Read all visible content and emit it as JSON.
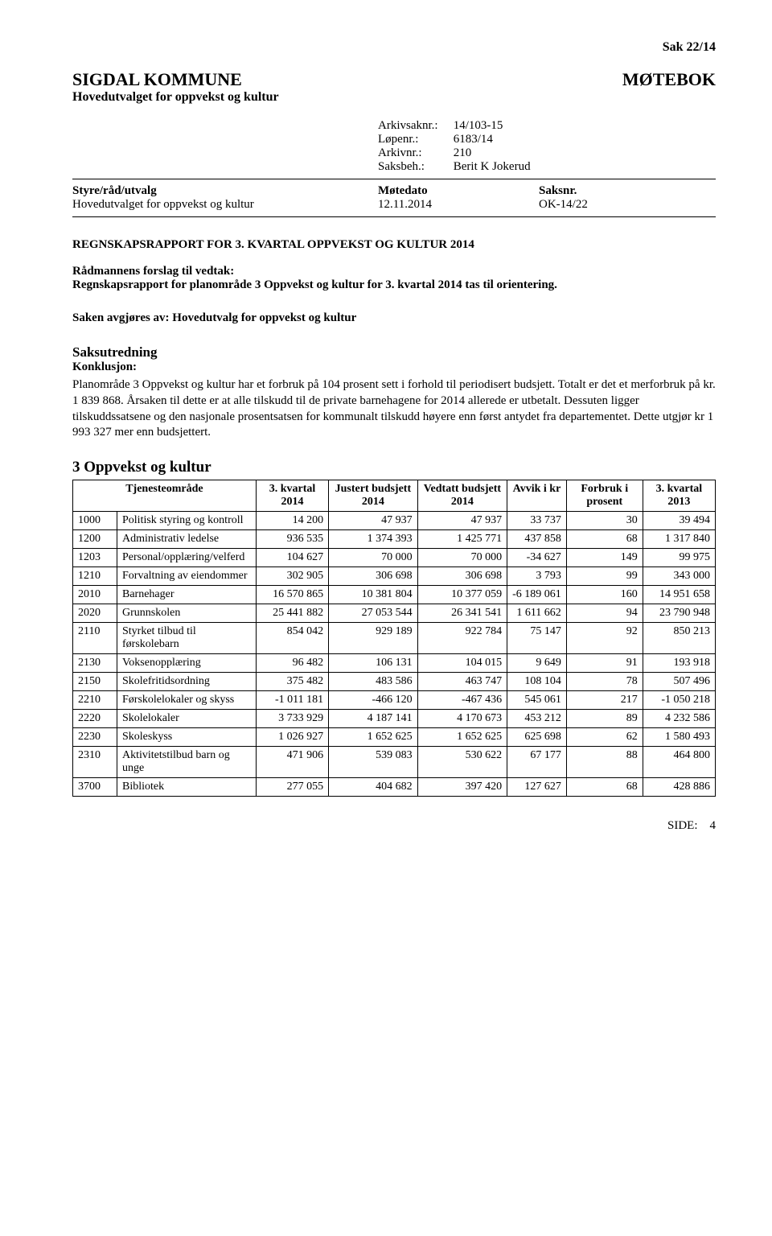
{
  "case_ref_top": "Sak  22/14",
  "org": "SIGDAL KOMMUNE",
  "subheader": "Hovedutvalget for oppvekst og kultur",
  "doc_type": "MØTEBOK",
  "meta": {
    "arkivsaknr_label": "Arkivsaknr.:",
    "arkivsaknr": "14/103-15",
    "lopenr_label": "Løpenr.:",
    "lopenr": "6183/14",
    "arkivnr_label": "Arkivnr.:",
    "arkivnr": "210",
    "saksbeh_label": "Saksbeh.:",
    "saksbeh": "Berit K  Jokerud"
  },
  "columns_header": {
    "c1": "Styre/råd/utvalg",
    "c2": "Møtedato",
    "c3": "Saksnr."
  },
  "columns_row": {
    "c1": "Hovedutvalget for oppvekst og kultur",
    "c2": "12.11.2014",
    "c3": "OK-14/22"
  },
  "report_title": "REGNSKAPSRAPPORT FOR 3. KVARTAL OPPVEKST OG KULTUR 2014",
  "forslag_label": "Rådmannens forslag til vedtak:",
  "forslag_text": "Regnskapsrapport for planområde 3 Oppvekst og kultur for 3. kvartal 2014 tas til orientering.",
  "avgjores": "Saken avgjøres av: Hovedutvalg for oppvekst og kultur",
  "saksutredning_label": "Saksutredning",
  "konklusjon_label": "Konklusjon:",
  "konklusjon_text": "Planområde 3 Oppvekst og kultur har et forbruk på 104 prosent sett i forhold til periodisert budsjett. Totalt er det et merforbruk på kr. 1 839 868. Årsaken til dette er at alle tilskudd til de private barnehagene for 2014 allerede er utbetalt. Dessuten ligger tilskuddssatsene og den nasjonale prosentsatsen for kommunalt tilskudd høyere enn først antydet fra departementet. Dette utgjør kr  1 993 327 mer enn budsjettert.",
  "table_title": "3 Oppvekst og kultur",
  "table": {
    "columns": [
      "Tjenesteområde",
      "3. kvartal 2014",
      "Justert budsjett 2014",
      "Vedtatt budsjett 2014",
      "Avvik i kr",
      "Forbruk i prosent",
      "3. kvartal 2013"
    ],
    "rows": [
      [
        "1000",
        "Politisk styring og kontroll",
        "14 200",
        "47 937",
        "47 937",
        "33 737",
        "30",
        "39 494"
      ],
      [
        "1200",
        "Administrativ ledelse",
        "936 535",
        "1 374 393",
        "1 425 771",
        "437 858",
        "68",
        "1 317 840"
      ],
      [
        "1203",
        "Personal/opplæring/velferd",
        "104 627",
        "70 000",
        "70 000",
        "-34 627",
        "149",
        "99 975"
      ],
      [
        "1210",
        "Forvaltning av eiendommer",
        "302 905",
        "306 698",
        "306 698",
        "3 793",
        "99",
        "343 000"
      ],
      [
        "2010",
        "Barnehager",
        "16 570 865",
        "10 381 804",
        "10 377 059",
        "-6 189 061",
        "160",
        "14 951 658"
      ],
      [
        "2020",
        "Grunnskolen",
        "25 441 882",
        "27 053 544",
        "26 341 541",
        "1 611 662",
        "94",
        "23 790 948"
      ],
      [
        "2110",
        "Styrket tilbud til førskolebarn",
        "854 042",
        "929 189",
        "922 784",
        "75 147",
        "92",
        "850 213"
      ],
      [
        "2130",
        "Voksenopplæring",
        "96 482",
        "106 131",
        "104 015",
        "9 649",
        "91",
        "193 918"
      ],
      [
        "2150",
        "Skolefritidsordning",
        "375 482",
        "483 586",
        "463 747",
        "108 104",
        "78",
        "507 496"
      ],
      [
        "2210",
        "Førskolelokaler og skyss",
        "-1 011 181",
        "-466 120",
        "-467 436",
        "545 061",
        "217",
        "-1 050 218"
      ],
      [
        "2220",
        "Skolelokaler",
        "3 733 929",
        "4 187 141",
        "4 170 673",
        "453 212",
        "89",
        "4 232 586"
      ],
      [
        "2230",
        "Skoleskyss",
        "1 026 927",
        "1 652 625",
        "1 652 625",
        "625 698",
        "62",
        "1 580 493"
      ],
      [
        "2310",
        "Aktivitetstilbud barn og unge",
        "471 906",
        "539 083",
        "530 622",
        "67 177",
        "88",
        "464 800"
      ],
      [
        "3700",
        "Bibliotek",
        "277 055",
        "404 682",
        "397 420",
        "127 627",
        "68",
        "428 886"
      ]
    ]
  },
  "footer_label": "SIDE:",
  "footer_page": "4"
}
